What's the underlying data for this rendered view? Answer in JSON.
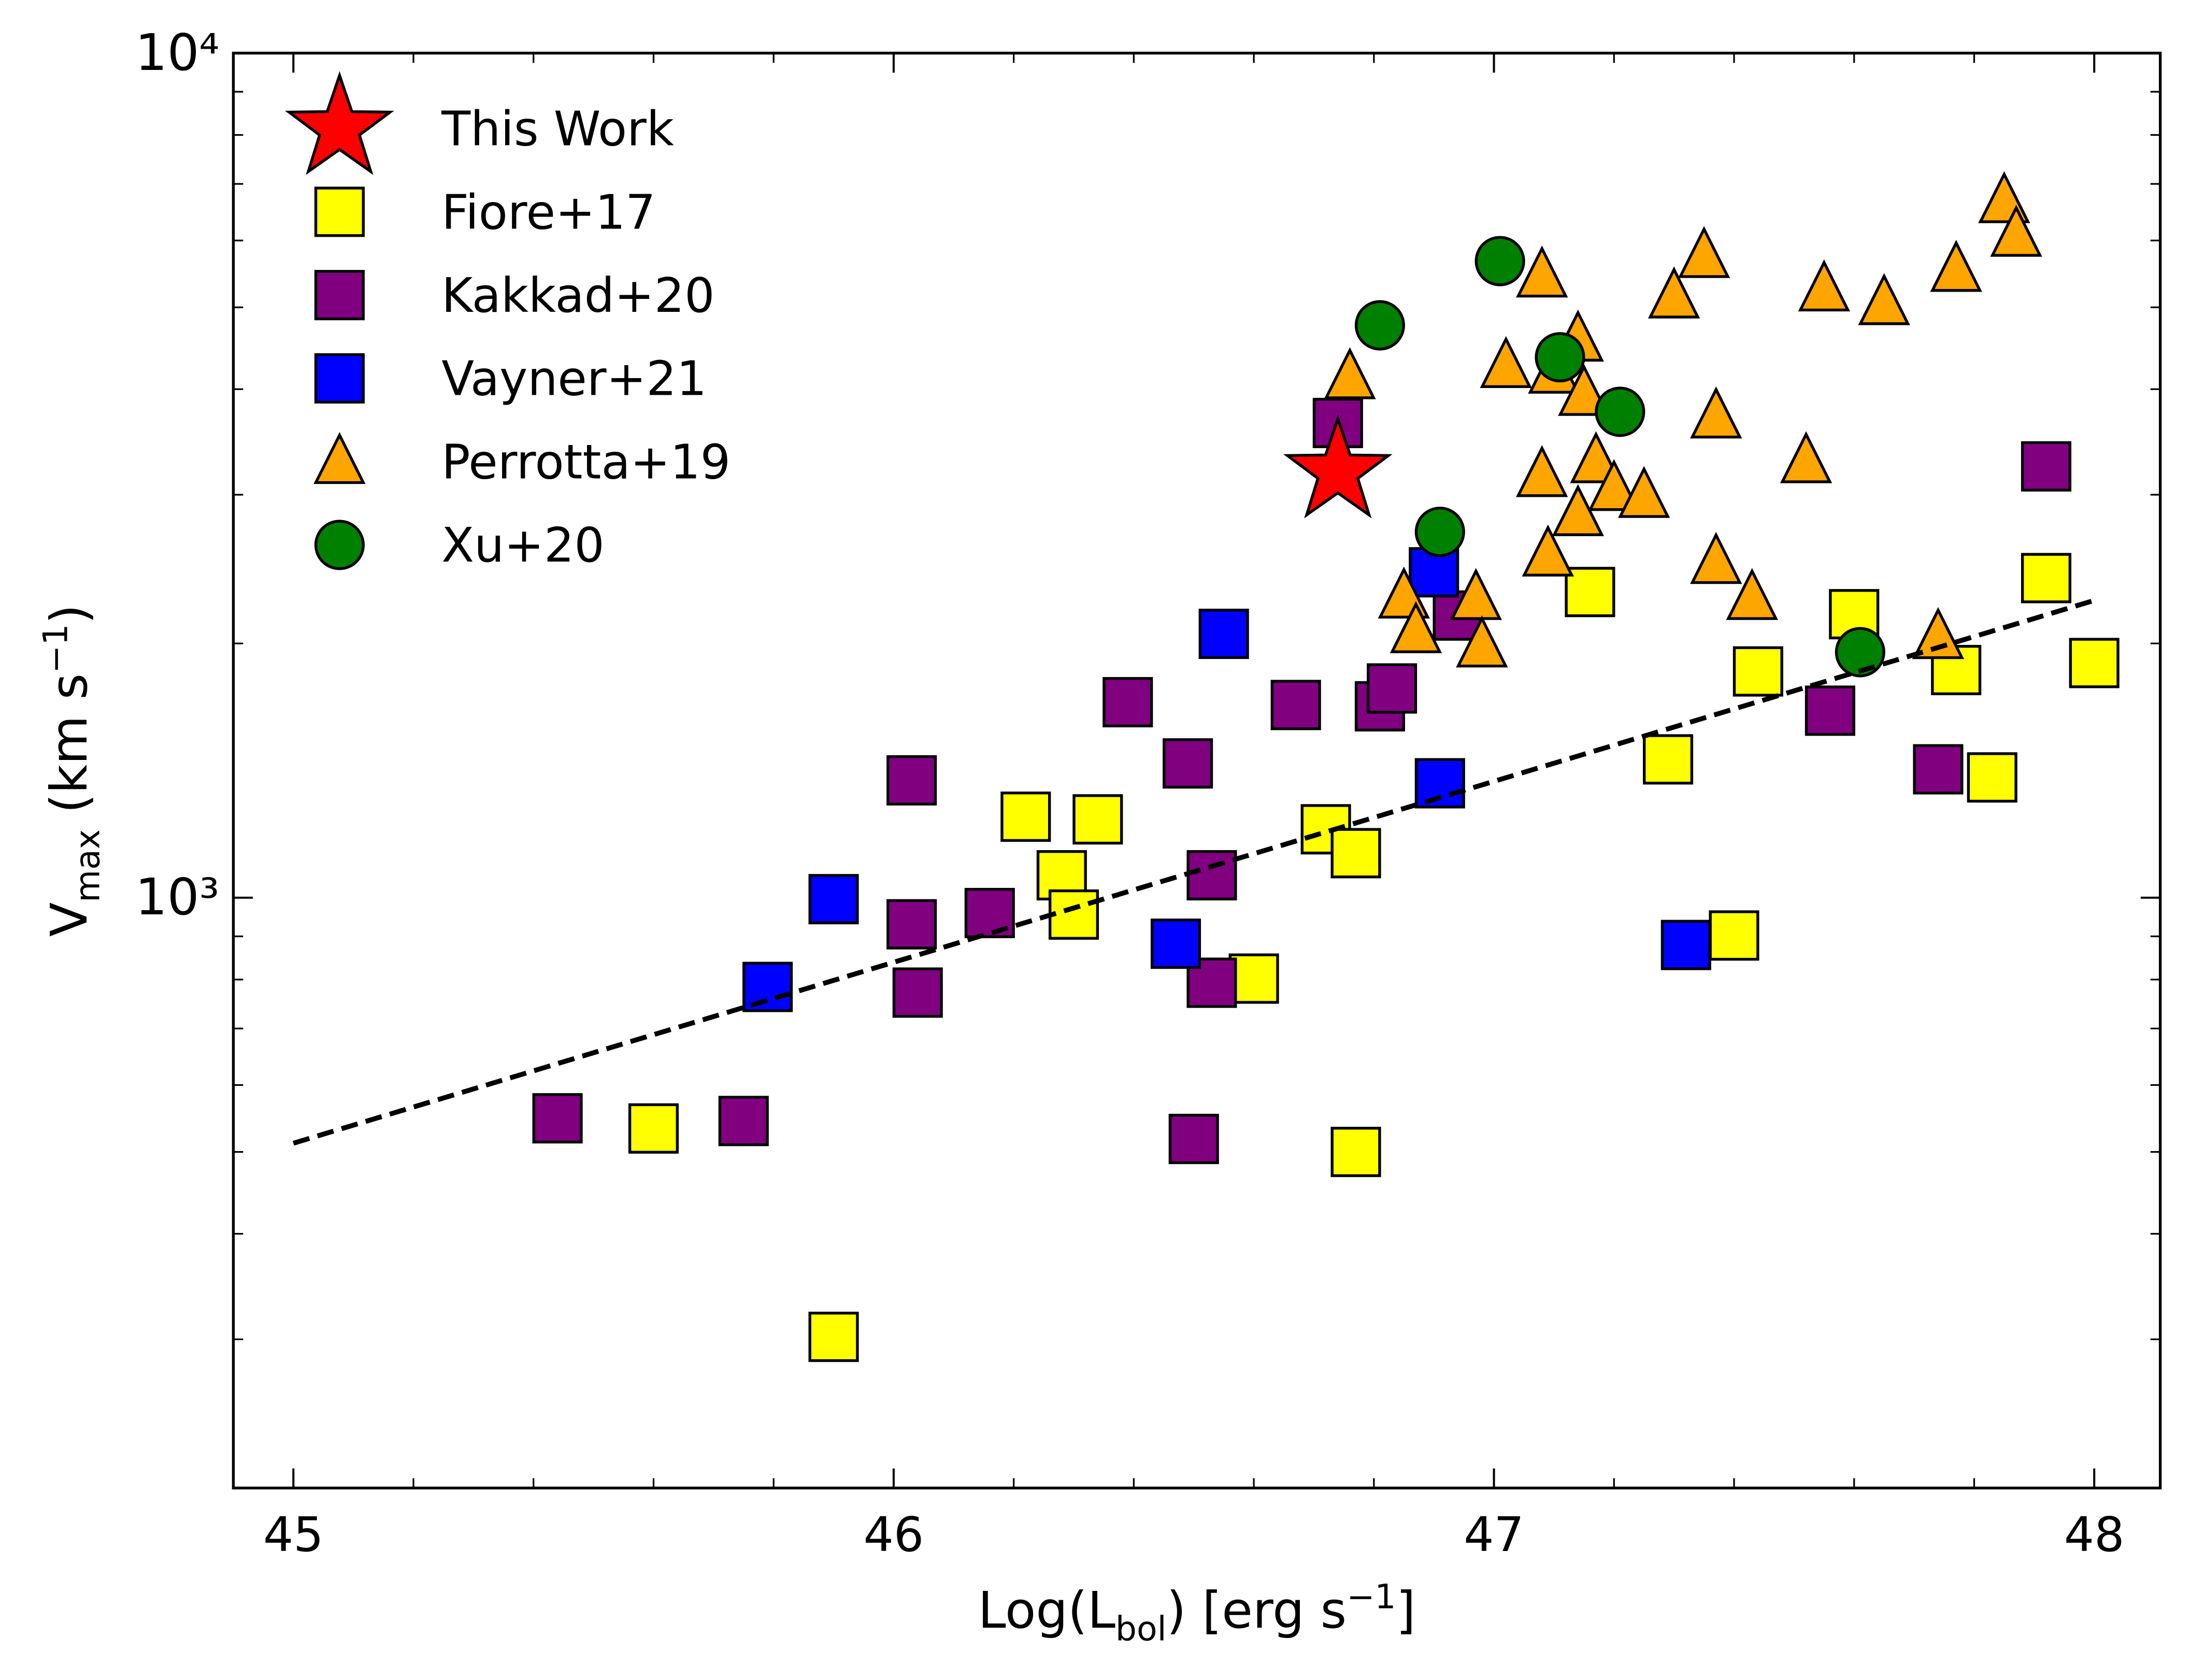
{
  "chart_data": {
    "type": "scatter",
    "xlabel": [
      {
        "text": "Log(L"
      },
      {
        "text": "bol",
        "sub": true
      },
      {
        "text": ") [erg s"
      },
      {
        "text": "−1",
        "sup": true
      },
      {
        "text": "]"
      }
    ],
    "ylabel": [
      {
        "text": "V"
      },
      {
        "text": "max",
        "sub": true
      },
      {
        "text": " (km s"
      },
      {
        "text": "−1",
        "sup": true
      },
      {
        "text": ")"
      }
    ],
    "xlim": [
      44.9,
      48.11
    ],
    "xticks": [
      45,
      46,
      47,
      48
    ],
    "xminor": [
      45.2,
      45.4,
      45.6,
      45.8,
      46.2,
      46.4,
      46.6,
      46.8,
      47.2,
      47.4,
      47.6,
      47.8,
      48.0
    ],
    "ylim": [
      200,
      10000
    ],
    "ylog": true,
    "yticks": [
      {
        "value": 1000,
        "label": "10³"
      },
      {
        "value": 10000,
        "label": "10⁴"
      }
    ],
    "yminor": [
      300,
      400,
      500,
      600,
      700,
      800,
      900,
      2000,
      3000,
      4000,
      5000,
      6000,
      7000,
      8000,
      9000
    ],
    "legend": "upper left",
    "series": [
      {
        "name": "This Work",
        "color": "#ff0000",
        "marker": "star",
        "x": [
          46.74
        ],
        "values": [
          3192
        ]
      },
      {
        "name": "Fiore+17",
        "color": "#ffff00",
        "marker": "square",
        "x": [
          45.6,
          45.9,
          46.22,
          46.34,
          46.28,
          46.3,
          46.6,
          46.72,
          46.77,
          46.77,
          47.16,
          47.29,
          47.4,
          47.44,
          47.6,
          47.77,
          47.83,
          47.92,
          48.0
        ],
        "values": [
          533,
          302,
          1247,
          1238,
          1063,
          955,
          802,
          1205,
          1129,
          500,
          2301,
          1458,
          902,
          1853,
          2166,
          1860,
          1388,
          2390,
          1896
        ]
      },
      {
        "name": "Kakkad+20",
        "color": "#800080",
        "marker": "square",
        "x": [
          45.44,
          45.75,
          46.03,
          46.03,
          46.04,
          46.16,
          46.39,
          46.49,
          46.53,
          46.53,
          46.5,
          46.67,
          46.74,
          46.81,
          46.83,
          46.94,
          47.56,
          47.74,
          47.92
        ],
        "values": [
          548,
          544,
          1377,
          930,
          772,
          959,
          1704,
          1442,
          1063,
          793,
          518,
          1691,
          3648,
          1685,
          1769,
          2158,
          1665,
          1419,
          3241
        ]
      },
      {
        "name": "Vayner+21",
        "color": "#0000ff",
        "marker": "square",
        "x": [
          45.79,
          45.9,
          46.55,
          46.47,
          46.9,
          46.91,
          47.32
        ],
        "values": [
          784,
          996,
          2053,
          882,
          2428,
          1366,
          879
        ]
      },
      {
        "name": "Perrotta+19",
        "color": "#ffa500",
        "marker": "triangle",
        "x": [
          46.76,
          46.85,
          46.87,
          46.97,
          46.98,
          47.08,
          47.02,
          47.1,
          47.14,
          47.15,
          47.08,
          47.17,
          47.14,
          47.2,
          47.25,
          47.09,
          47.3,
          47.35,
          47.37,
          47.37,
          47.43,
          47.52,
          47.55,
          47.65,
          47.77,
          47.85,
          47.87,
          47.74
        ],
        "values": [
          4137,
          2275,
          2070,
          2266,
          1991,
          5459,
          4265,
          4200,
          4584,
          3953,
          3168,
          3290,
          2848,
          3050,
          2993,
          2551,
          5156,
          5757,
          3717,
          2500,
          2266,
          3290,
          5256,
          5063,
          5544,
          6685,
          6100,
          2037
        ]
      },
      {
        "name": "Xu+20",
        "color": "#008000",
        "marker": "circle",
        "x": [
          46.81,
          47.01,
          47.11,
          47.21,
          46.91,
          47.61
        ],
        "values": [
          4761,
          5672,
          4364,
          3761,
          2711,
          1953
        ]
      }
    ],
    "fit": {
      "x": [
        45,
        48
      ],
      "values": [
        512,
        2249
      ],
      "color": "#000000",
      "dashed": true
    }
  }
}
